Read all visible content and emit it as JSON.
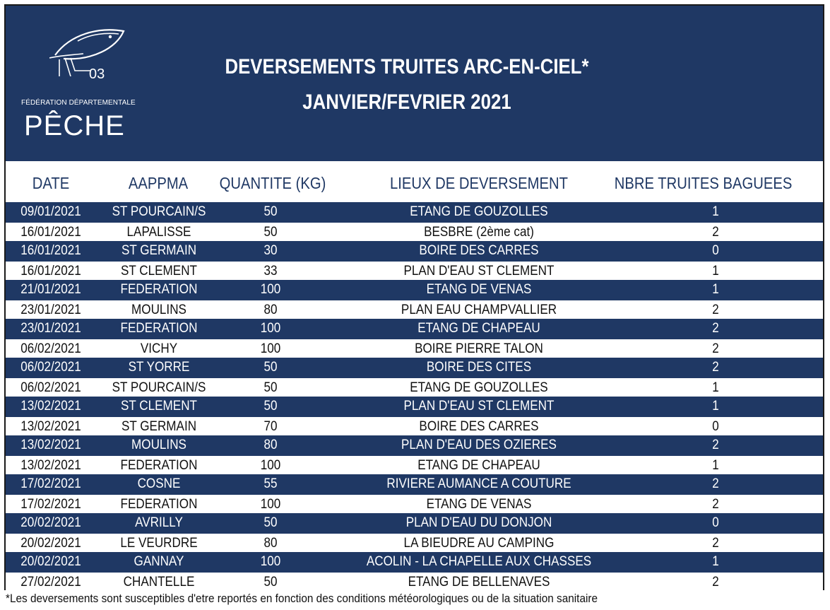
{
  "colors": {
    "navy": "#1f3864",
    "white": "#ffffff"
  },
  "logo": {
    "icon": "fish-hook-logo-icon",
    "number": "03",
    "subtitle": "FÉDÉRATION DÉPARTEMENTALE",
    "word": "PÊCHE"
  },
  "title": {
    "line1": "DEVERSEMENTS TRUITES ARC-EN-CIEL*",
    "line2": "JANVIER/FEVRIER 2021"
  },
  "table": {
    "headers": {
      "date": "DATE",
      "aappma": "AAPPMA",
      "quantite": "QUANTITE  (KG)",
      "lieux": "LIEUX DE DEVERSEMENT",
      "nbre": "NBRE TRUITES BAGUEES"
    },
    "rows": [
      [
        "09/01/2021",
        "ST POURCAIN/S",
        "50",
        "ETANG DE GOUZOLLES",
        "1"
      ],
      [
        "16/01/2021",
        "LAPALISSE",
        "50",
        "BESBRE (2ème cat)",
        "2"
      ],
      [
        "16/01/2021",
        "ST GERMAIN",
        "30",
        "BOIRE DES CARRES",
        "0"
      ],
      [
        "16/01/2021",
        "ST CLEMENT",
        "33",
        "PLAN D'EAU ST CLEMENT",
        "1"
      ],
      [
        "21/01/2021",
        "FEDERATION",
        "100",
        "ETANG DE VENAS",
        "1"
      ],
      [
        "23/01/2021",
        "MOULINS",
        "80",
        "PLAN EAU CHAMPVALLIER",
        "2"
      ],
      [
        "23/01/2021",
        "FEDERATION",
        "100",
        "ETANG DE CHAPEAU",
        "2"
      ],
      [
        "06/02/2021",
        "VICHY",
        "100",
        "BOIRE PIERRE TALON",
        "2"
      ],
      [
        "06/02/2021",
        "ST YORRE",
        "50",
        "BOIRE DES CITES",
        "2"
      ],
      [
        "06/02/2021",
        "ST POURCAIN/S",
        "50",
        "ETANG DE GOUZOLLES",
        "1"
      ],
      [
        "13/02/2021",
        "ST CLEMENT",
        "50",
        "PLAN D'EAU ST CLEMENT",
        "1"
      ],
      [
        "13/02/2021",
        "ST GERMAIN",
        "70",
        "BOIRE DES CARRES",
        "0"
      ],
      [
        "13/02/2021",
        "MOULINS",
        "80",
        "PLAN D'EAU DES OZIERES",
        "2"
      ],
      [
        "13/02/2021",
        "FEDERATION",
        "100",
        "ETANG DE CHAPEAU",
        "1"
      ],
      [
        "17/02/2021",
        "COSNE",
        "55",
        "RIVIERE AUMANCE A COUTURE",
        "2"
      ],
      [
        "17/02/2021",
        "FEDERATION",
        "100",
        "ETANG DE VENAS",
        "2"
      ],
      [
        "20/02/2021",
        "AVRILLY",
        "50",
        "PLAN D'EAU DU DONJON",
        "0"
      ],
      [
        "20/02/2021",
        "LE VEURDRE",
        "80",
        "LA BIEUDRE AU CAMPING",
        "2"
      ],
      [
        "20/02/2021",
        "GANNAY",
        "100",
        "ACOLIN - LA CHAPELLE AUX CHASSES",
        "1"
      ],
      [
        "27/02/2021",
        "CHANTELLE",
        "50",
        "ETANG DE BELLENAVES",
        "2"
      ]
    ]
  },
  "footnote": "*Les deversements sont susceptibles d'etre reportés en fonction des conditions météorologiques ou de la situation sanitaire"
}
